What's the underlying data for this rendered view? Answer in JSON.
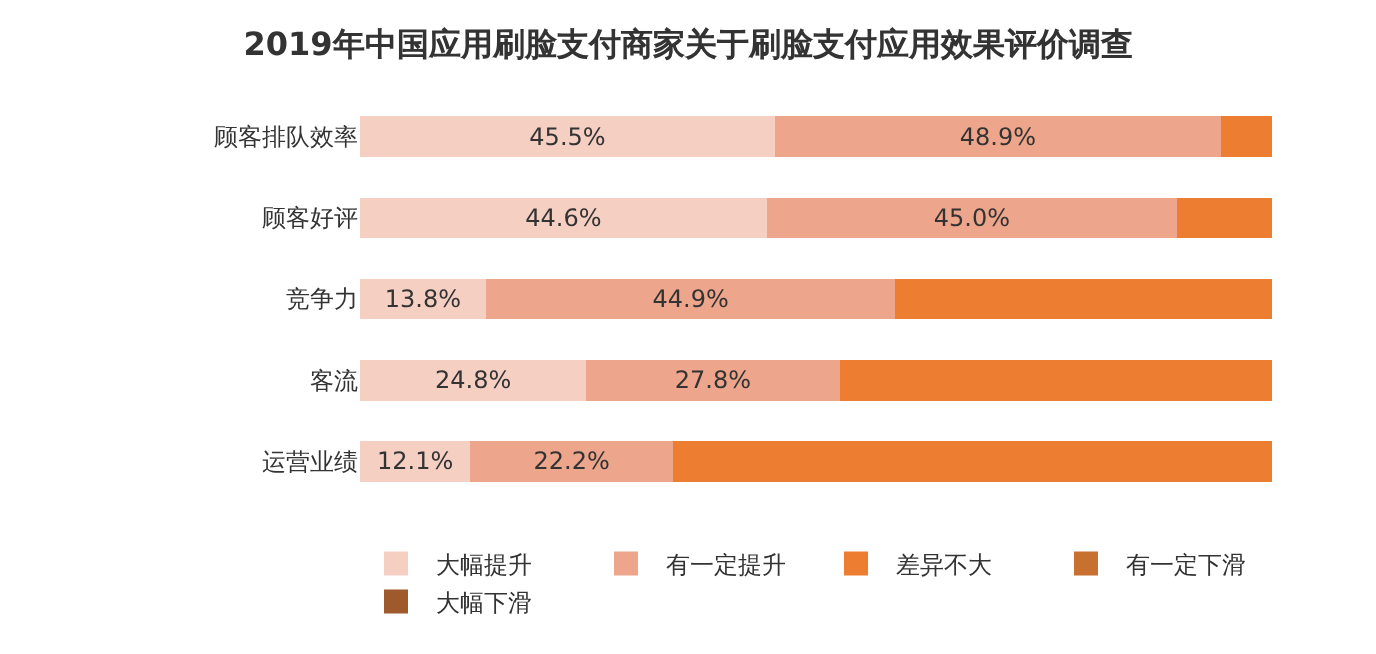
{
  "chart_data": {
    "type": "bar",
    "orientation": "horizontal",
    "stacked": true,
    "title": "2019年中国应用刷脸支付商家关于刷脸支付应用效果评价调查",
    "categories": [
      "顾客排队效率",
      "顾客好评",
      "竞争力",
      "客流",
      "运营业绩"
    ],
    "xlim": [
      0,
      100
    ],
    "legend": "bottom",
    "tick_labels": "y",
    "series": [
      {
        "name": "大幅提升",
        "color": "#f6cfc3",
        "values": [
          45.5,
          44.6,
          13.8,
          24.8,
          12.1
        ],
        "value_labels": [
          "45.5%",
          "44.6%",
          "13.8%",
          "24.8%",
          "12.1%"
        ]
      },
      {
        "name": "有一定提升",
        "color": "#eda58c",
        "values": [
          48.9,
          45.0,
          44.9,
          27.8,
          22.2
        ],
        "value_labels": [
          "48.9%",
          "45.0%",
          "44.9%",
          "27.8%",
          "22.2%"
        ]
      },
      {
        "name": "差异不大",
        "color": "#ed7d31",
        "values": [
          5.6,
          10.4,
          41.3,
          47.4,
          65.7
        ],
        "value_labels": [
          null,
          null,
          null,
          null,
          null
        ]
      },
      {
        "name": "有一定下滑",
        "color": "#c8702f",
        "values": [
          0,
          0,
          0,
          0,
          0
        ],
        "value_labels": [
          null,
          null,
          null,
          null,
          null
        ]
      },
      {
        "name": "大幅下滑",
        "color": "#9e5a2c",
        "values": [
          0,
          0,
          0,
          0,
          0
        ],
        "value_labels": [
          null,
          null,
          null,
          null,
          null
        ]
      }
    ]
  }
}
